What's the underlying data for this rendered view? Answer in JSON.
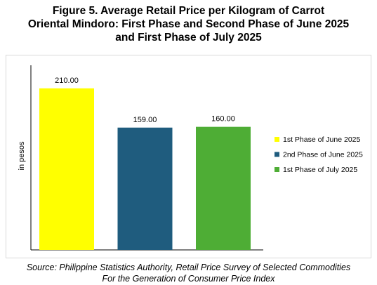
{
  "title_lines": [
    "Figure 5. Average Retail Price per Kilogram of Carrot",
    "Oriental Mindoro: First Phase and Second Phase of June 2025",
    "and First Phase of July 2025"
  ],
  "source_lines": [
    "Source: Philippine Statistics Authority, Retail Price Survey of Selected Commodities",
    "For the Generation of Consumer Price Index"
  ],
  "chart_data": {
    "type": "bar",
    "ylabel": "in pesos",
    "ylim": [
      0,
      240
    ],
    "grid": false,
    "legend_position": "right",
    "categories": [
      "1st Phase of June 2025",
      "2nd Phase of June 2025",
      "1st Phase of July 2025"
    ],
    "values": [
      210.0,
      159.0,
      160.0
    ],
    "value_labels": [
      "210.00",
      "159.00",
      "160.00"
    ],
    "colors": [
      "#FFFF00",
      "#1F5C7E",
      "#4EAD35"
    ]
  }
}
